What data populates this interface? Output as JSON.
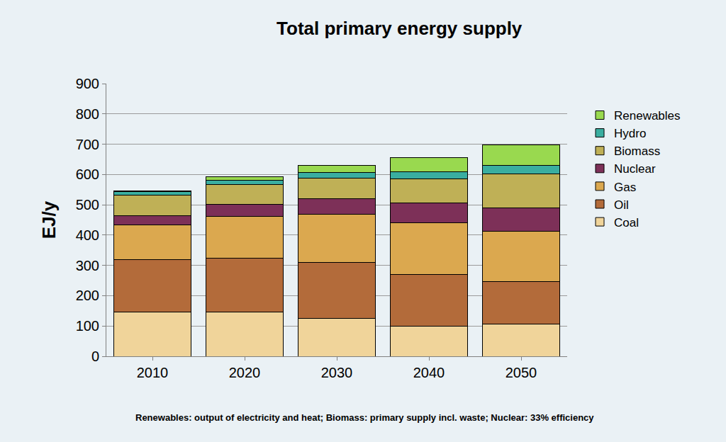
{
  "chart_data": {
    "type": "bar",
    "stacked": true,
    "title": "Total primary energy supply",
    "y_label": "EJ/y",
    "annotations": [
      "Renewables: output of electricity and heat; Biomass: primary supply incl. waste; Nuclear: 33% efficiency"
    ],
    "categories": [
      "2010",
      "2020",
      "2030",
      "2040",
      "2050"
    ],
    "series": [
      {
        "name": "Coal",
        "color": "#f0d49a",
        "values": [
          147,
          147,
          125,
          100,
          107
        ]
      },
      {
        "name": "Oil",
        "color": "#b36b3a",
        "values": [
          173,
          177,
          185,
          170,
          140
        ]
      },
      {
        "name": "Gas",
        "color": "#dba84f",
        "values": [
          113,
          138,
          158,
          170,
          165
        ]
      },
      {
        "name": "Nuclear",
        "color": "#7d3058",
        "values": [
          32,
          40,
          52,
          67,
          78
        ]
      },
      {
        "name": "Biomass",
        "color": "#bfb056",
        "values": [
          67,
          65,
          67,
          78,
          112
        ]
      },
      {
        "name": "Hydro",
        "color": "#3aaea0",
        "values": [
          12,
          15,
          20,
          23,
          28
        ]
      },
      {
        "name": "Renewables",
        "color": "#99d94f",
        "values": [
          3,
          10,
          23,
          47,
          67
        ]
      }
    ],
    "ylim": [
      0,
      900
    ],
    "yticks": [
      0,
      100,
      200,
      300,
      400,
      500,
      600,
      700,
      800,
      900
    ],
    "grid": true,
    "legend": "right"
  }
}
